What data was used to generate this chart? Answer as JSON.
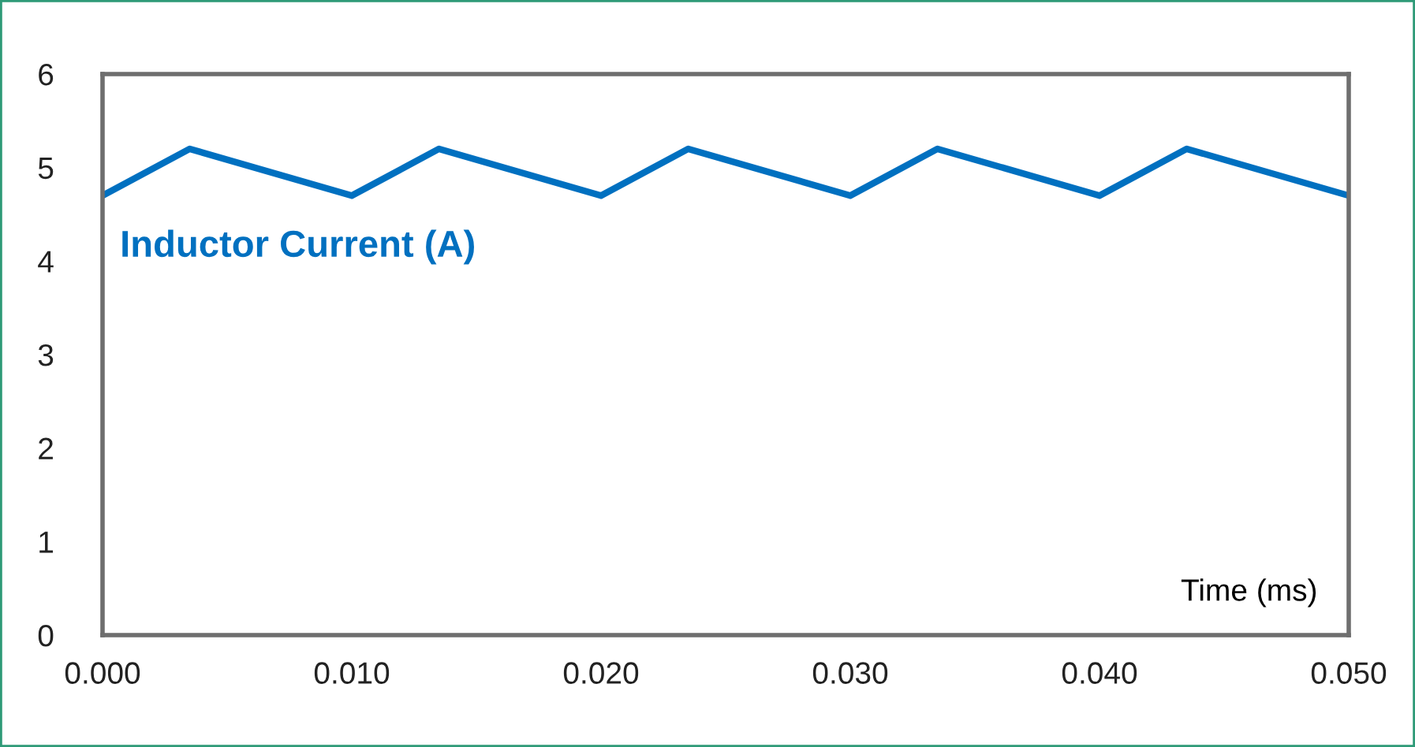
{
  "chart_data": {
    "type": "line",
    "xlabel": "Time (ms)",
    "x": [
      0,
      0.0035,
      0.01,
      0.0135,
      0.02,
      0.0235,
      0.03,
      0.0335,
      0.04,
      0.0435,
      0.05
    ],
    "series": [
      {
        "name": "Inductor Current (A)",
        "color": "#0070c0",
        "values": [
          4.7,
          5.2,
          4.7,
          5.2,
          4.7,
          5.2,
          4.7,
          5.2,
          4.7,
          5.2,
          4.7
        ]
      }
    ],
    "xlim": [
      0,
      0.05
    ],
    "xticks": [
      {
        "value": 0,
        "label": "0.000"
      },
      {
        "value": 0.01,
        "label": "0.010"
      },
      {
        "value": 0.02,
        "label": "0.020"
      },
      {
        "value": 0.03,
        "label": "0.030"
      },
      {
        "value": 0.04,
        "label": "0.040"
      },
      {
        "value": 0.05,
        "label": "0.050"
      }
    ],
    "ylim": [
      0,
      6
    ],
    "yticks": [
      0,
      1,
      2,
      3,
      4,
      5,
      6
    ],
    "grid": false,
    "legend": false,
    "marker": "none",
    "line_style": "solid"
  }
}
